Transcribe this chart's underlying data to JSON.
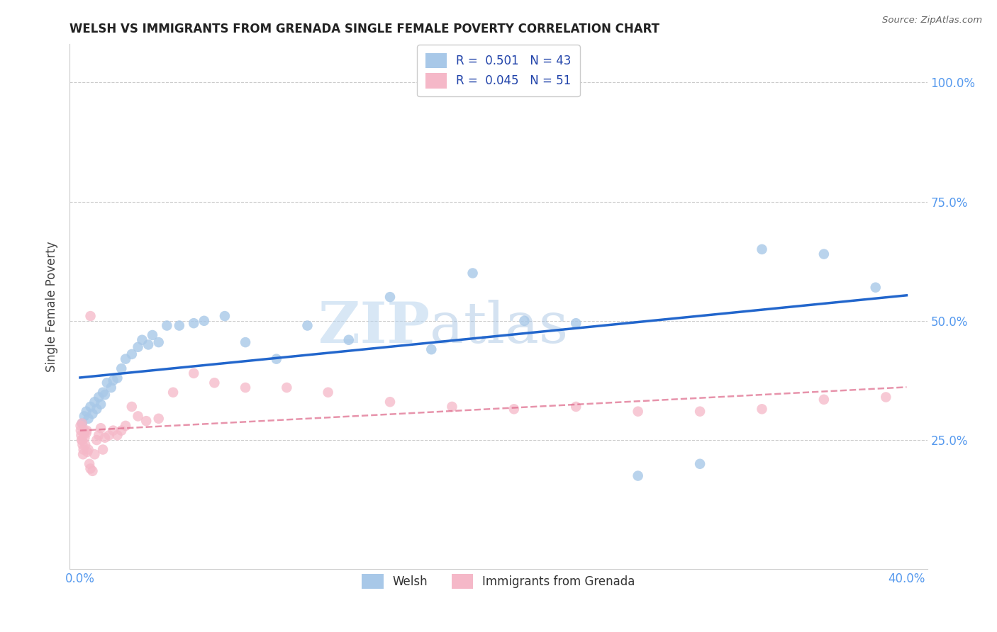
{
  "title": "WELSH VS IMMIGRANTS FROM GRENADA SINGLE FEMALE POVERTY CORRELATION CHART",
  "source": "Source: ZipAtlas.com",
  "ylabel": "Single Female Poverty",
  "xaxis_label_color": "#5599ee",
  "yaxis_label_color": "#5599ee",
  "x_tick_labels": [
    "0.0%",
    "",
    "",
    "",
    "40.0%"
  ],
  "x_tick_positions": [
    0.0,
    0.1,
    0.2,
    0.3,
    0.4
  ],
  "y_tick_labels": [
    "100.0%",
    "75.0%",
    "50.0%",
    "25.0%"
  ],
  "y_tick_positions": [
    1.0,
    0.75,
    0.5,
    0.25
  ],
  "xlim": [
    -0.005,
    0.41
  ],
  "ylim": [
    -0.02,
    1.08
  ],
  "legend_label1": "Welsh",
  "legend_label2": "Immigrants from Grenada",
  "color_welsh": "#a8c8e8",
  "color_grenada": "#f5b8c8",
  "trendline_welsh_color": "#2266cc",
  "trendline_grenada_color": "#dd6688",
  "watermark_zip": "ZIP",
  "watermark_atlas": "atlas",
  "background_color": "#ffffff",
  "grid_color": "#cccccc",
  "welsh_x": [
    0.001,
    0.002,
    0.003,
    0.004,
    0.005,
    0.006,
    0.007,
    0.008,
    0.009,
    0.01,
    0.011,
    0.012,
    0.013,
    0.015,
    0.016,
    0.018,
    0.02,
    0.022,
    0.025,
    0.028,
    0.03,
    0.033,
    0.035,
    0.038,
    0.042,
    0.048,
    0.055,
    0.06,
    0.07,
    0.08,
    0.095,
    0.11,
    0.13,
    0.15,
    0.17,
    0.19,
    0.215,
    0.24,
    0.27,
    0.3,
    0.33,
    0.36,
    0.385
  ],
  "welsh_y": [
    0.285,
    0.3,
    0.31,
    0.295,
    0.32,
    0.305,
    0.33,
    0.315,
    0.34,
    0.325,
    0.35,
    0.345,
    0.37,
    0.36,
    0.375,
    0.38,
    0.4,
    0.42,
    0.43,
    0.445,
    0.46,
    0.45,
    0.47,
    0.455,
    0.49,
    0.49,
    0.495,
    0.5,
    0.51,
    0.455,
    0.42,
    0.49,
    0.46,
    0.55,
    0.44,
    0.6,
    0.5,
    0.495,
    0.175,
    0.2,
    0.65,
    0.64,
    0.57
  ],
  "grenada_x": [
    0.0002,
    0.0003,
    0.0005,
    0.0007,
    0.0009,
    0.001,
    0.0012,
    0.0014,
    0.0016,
    0.0018,
    0.002,
    0.0022,
    0.0025,
    0.003,
    0.0032,
    0.0035,
    0.004,
    0.0045,
    0.005,
    0.006,
    0.007,
    0.008,
    0.009,
    0.01,
    0.011,
    0.012,
    0.014,
    0.016,
    0.018,
    0.02,
    0.022,
    0.025,
    0.028,
    0.032,
    0.038,
    0.045,
    0.055,
    0.065,
    0.08,
    0.1,
    0.12,
    0.15,
    0.18,
    0.21,
    0.24,
    0.27,
    0.3,
    0.33,
    0.36,
    0.39,
    0.005
  ],
  "grenada_y": [
    0.28,
    0.27,
    0.26,
    0.25,
    0.285,
    0.25,
    0.24,
    0.22,
    0.23,
    0.265,
    0.27,
    0.255,
    0.24,
    0.265,
    0.27,
    0.225,
    0.23,
    0.2,
    0.19,
    0.185,
    0.22,
    0.25,
    0.26,
    0.275,
    0.23,
    0.255,
    0.26,
    0.27,
    0.26,
    0.27,
    0.28,
    0.32,
    0.3,
    0.29,
    0.295,
    0.35,
    0.39,
    0.37,
    0.36,
    0.36,
    0.35,
    0.33,
    0.32,
    0.315,
    0.32,
    0.31,
    0.31,
    0.315,
    0.335,
    0.34,
    0.51
  ]
}
